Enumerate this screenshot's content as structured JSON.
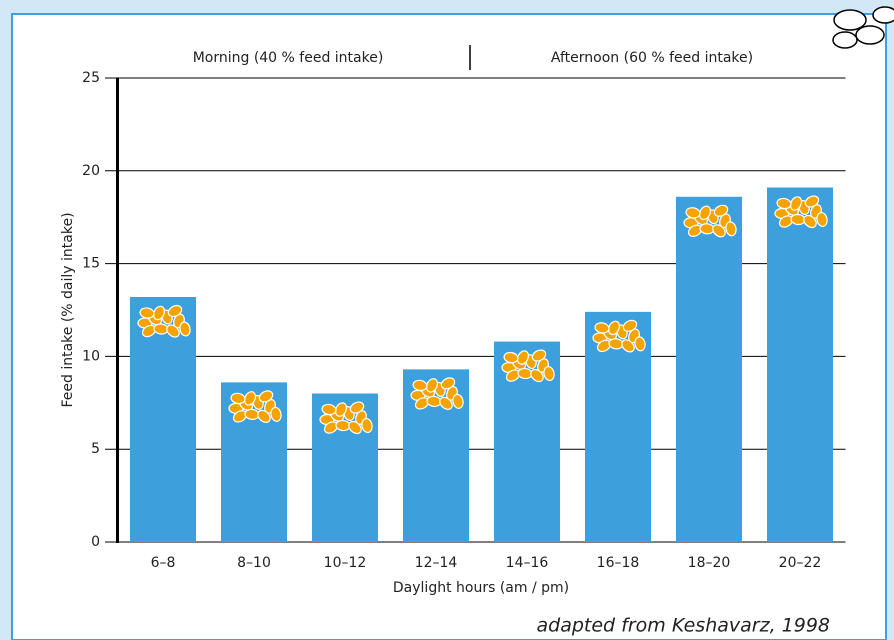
{
  "chart_data": {
    "type": "bar",
    "annotations": [
      "Morning (40 % feed intake)",
      "Afternoon (60 % feed intake)"
    ],
    "y_label": "Feed intake (% daily intake)",
    "x_label": "Daylight hours (am / pm)",
    "source": "adapted from Keshavarz, 1998",
    "categories": [
      "6–8",
      "8–10",
      "10–12",
      "12–14",
      "14–16",
      "16–18",
      "18–20",
      "20–22"
    ],
    "values": [
      13.2,
      8.6,
      8.0,
      9.3,
      10.8,
      12.4,
      18.6,
      19.1
    ],
    "color": "#3d9fdb",
    "ylim": [
      0,
      25
    ],
    "yticks": [
      0,
      5,
      10,
      15,
      20,
      25
    ],
    "grid": true
  }
}
